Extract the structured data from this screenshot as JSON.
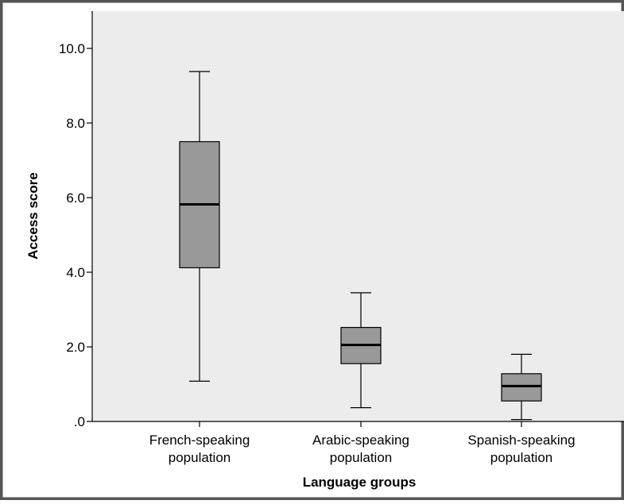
{
  "chart_data": {
    "type": "boxplot",
    "xlabel": "Language groups",
    "ylabel": "Access score",
    "ylim": [
      0,
      11
    ],
    "y_ticks": [
      {
        "value": 0,
        "label": ".0"
      },
      {
        "value": 2,
        "label": "2.0"
      },
      {
        "value": 4,
        "label": "4.0"
      },
      {
        "value": 6,
        "label": "6.0"
      },
      {
        "value": 8,
        "label": "8.0"
      },
      {
        "value": 10,
        "label": "10.0"
      }
    ],
    "categories": [
      {
        "line1": "French-speaking",
        "line2": "population"
      },
      {
        "line1": "Arabic-speaking",
        "line2": "population"
      },
      {
        "line1": "Spanish-speaking",
        "line2": "population"
      }
    ],
    "boxes": [
      {
        "min": 1.08,
        "q1": 4.12,
        "median": 5.82,
        "q3": 7.5,
        "max": 9.38
      },
      {
        "min": 0.37,
        "q1": 1.55,
        "median": 2.05,
        "q3": 2.52,
        "max": 3.45
      },
      {
        "min": 0.05,
        "q1": 0.55,
        "median": 0.95,
        "q3": 1.28,
        "max": 1.8
      }
    ],
    "grid": false,
    "colors": {
      "plot_background": "#ececec",
      "box_fill": "#999999",
      "line": "#000000",
      "frame": "#555555"
    }
  }
}
